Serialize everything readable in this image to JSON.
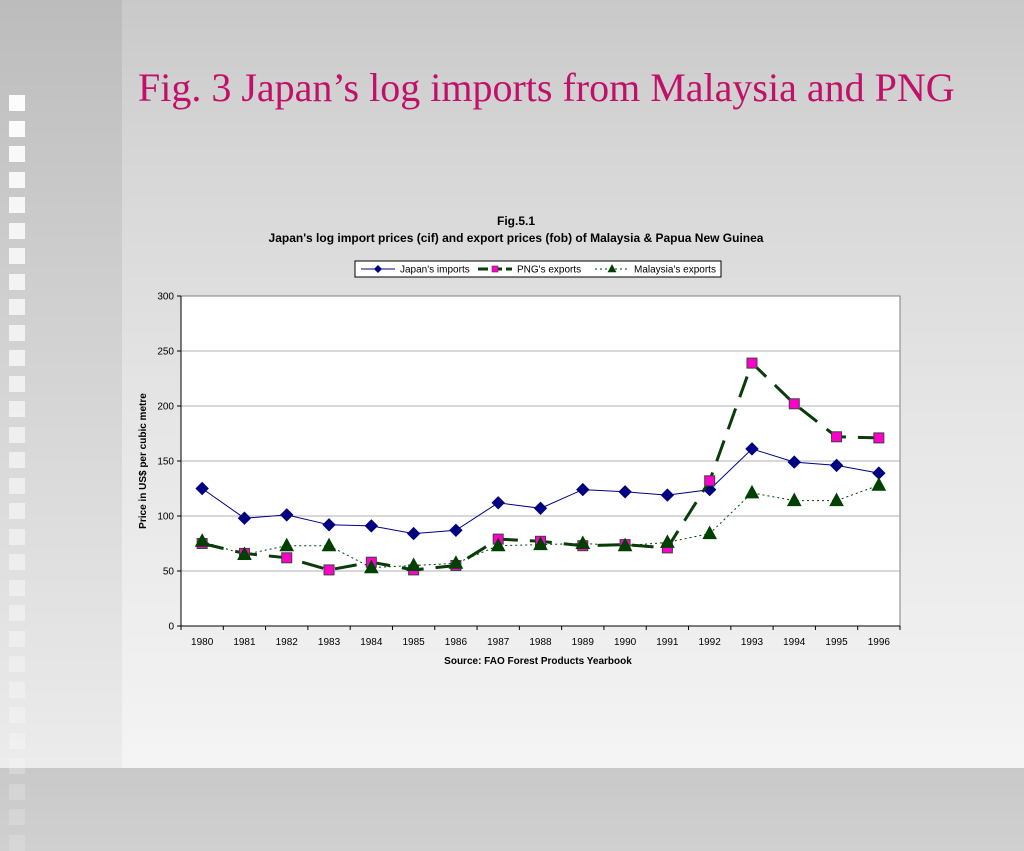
{
  "slide": {
    "title": "Fig. 3 Japan’s log imports from Malaysia and PNG"
  },
  "chart_data": {
    "type": "line",
    "figure_label": "Fig.5.1",
    "title": "Japan's log import prices (cif) and export prices (fob) of Malaysia & Papua New Guinea",
    "xlabel": "",
    "ylabel": "Price in US$ per cubic metre",
    "source": "Source: FAO Forest Products Yearbook",
    "categories": [
      "1980",
      "1981",
      "1982",
      "1983",
      "1984",
      "1985",
      "1986",
      "1987",
      "1988",
      "1989",
      "1990",
      "1991",
      "1992",
      "1993",
      "1994",
      "1995",
      "1996"
    ],
    "ylim": [
      0,
      300
    ],
    "yticks": [
      0,
      50,
      100,
      150,
      200,
      250,
      300
    ],
    "grid": "horizontal",
    "legend_position": "top",
    "series": [
      {
        "name": "Japan's imports",
        "color": "#000080",
        "marker": "diamond",
        "line_style": "solid",
        "values": [
          125,
          98,
          101,
          92,
          91,
          84,
          87,
          112,
          107,
          124,
          122,
          119,
          124,
          161,
          149,
          146,
          139
        ]
      },
      {
        "name": "PNG's exports",
        "color": "#0a3b0a",
        "marker_color": "#ff00cc",
        "marker": "square",
        "line_style": "long-dash",
        "values": [
          75,
          66,
          62,
          51,
          58,
          51,
          55,
          79,
          77,
          73,
          74,
          71,
          132,
          239,
          202,
          172,
          171
        ]
      },
      {
        "name": "Malaysia's exports",
        "color": "#004000",
        "marker": "triangle",
        "line_style": "dotted",
        "values": [
          77,
          65,
          73,
          73,
          53,
          55,
          57,
          73,
          74,
          75,
          73,
          76,
          84,
          121,
          114,
          114,
          128
        ]
      }
    ]
  }
}
